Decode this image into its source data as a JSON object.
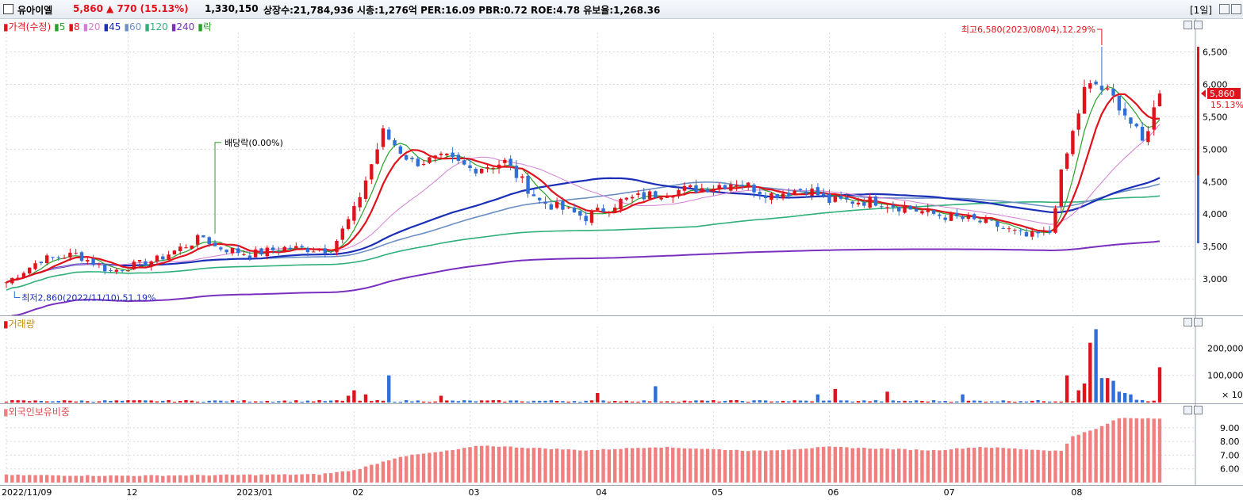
{
  "header": {
    "stock_name": "유아이엘",
    "price": "5,860",
    "change": "▲ 770 (15.13%)",
    "volume": "1,330,150",
    "info": "상장수:21,784,936 시총:1,276억 PER:16.09 PBR:0.72 ROE:4.78 유보율:1,268.36",
    "period": "[1일]"
  },
  "price_panel": {
    "legend": [
      {
        "label": "가격(수정)",
        "color": "#e0121b"
      },
      {
        "label": "5",
        "color": "#2ba02b"
      },
      {
        "label": "8",
        "color": "#e0121b"
      },
      {
        "label": "20",
        "color": "#d27ed2"
      },
      {
        "label": "45",
        "color": "#1a2fb8"
      },
      {
        "label": "60",
        "color": "#6c8fc4"
      },
      {
        "label": "120",
        "color": "#2fb07a"
      },
      {
        "label": "240",
        "color": "#7a2fbf"
      },
      {
        "label": "락",
        "color": "#2ba02b"
      }
    ],
    "high_note": "최고6,580(2023/08/04),12.29%",
    "low_note": "최저2,860(2022/11/10),51.19%",
    "dividend_note": "배당락(0.00%)",
    "current_price_tag": "5,860",
    "current_pct_tag": "15.13%"
  },
  "volume_panel": {
    "title": "거래량",
    "unit_tag": "× 10"
  },
  "foreign_panel": {
    "title": "외국인보유비중"
  },
  "colors": {
    "up": "#e0121b",
    "down": "#2f6fd6",
    "foreign_bar": "#f08080"
  },
  "chart_data": [
    {
      "type": "candlestick",
      "title": "가격(수정)",
      "ylim": [
        2500,
        6800
      ],
      "yticks": [
        "3,000",
        "3,500",
        "4,000",
        "4,500",
        "5,000",
        "5,500",
        "6,000",
        "6,500"
      ],
      "yticks_values": [
        3000,
        3500,
        4000,
        4500,
        5000,
        5500,
        6000,
        6500
      ],
      "xlabels": [
        "2022/11/09",
        "12",
        "2023/01",
        "02",
        "03",
        "04",
        "05",
        "06",
        "07",
        "08"
      ],
      "xlabel_index": [
        0,
        21,
        40,
        60,
        80,
        102,
        122,
        142,
        162,
        184
      ],
      "n": 200,
      "keypoints": [
        {
          "i": 0,
          "close": 2950
        },
        {
          "i": 6,
          "close": 3300
        },
        {
          "i": 12,
          "close": 3380
        },
        {
          "i": 18,
          "close": 3120
        },
        {
          "i": 26,
          "close": 3300
        },
        {
          "i": 34,
          "close": 3650
        },
        {
          "i": 36,
          "close": 3500
        },
        {
          "i": 42,
          "close": 3380
        },
        {
          "i": 48,
          "close": 3480
        },
        {
          "i": 56,
          "close": 3450
        },
        {
          "i": 60,
          "close": 4050
        },
        {
          "i": 65,
          "close": 5250
        },
        {
          "i": 70,
          "close": 4800
        },
        {
          "i": 76,
          "close": 4850
        },
        {
          "i": 80,
          "close": 4700
        },
        {
          "i": 86,
          "close": 4800
        },
        {
          "i": 92,
          "close": 4200
        },
        {
          "i": 100,
          "close": 3950
        },
        {
          "i": 106,
          "close": 4200
        },
        {
          "i": 114,
          "close": 4350
        },
        {
          "i": 120,
          "close": 4400
        },
        {
          "i": 126,
          "close": 4500
        },
        {
          "i": 132,
          "close": 4300
        },
        {
          "i": 138,
          "close": 4400
        },
        {
          "i": 142,
          "close": 4200
        },
        {
          "i": 150,
          "close": 4200
        },
        {
          "i": 160,
          "close": 4000
        },
        {
          "i": 170,
          "close": 3850
        },
        {
          "i": 176,
          "close": 3650
        },
        {
          "i": 180,
          "close": 3720
        },
        {
          "i": 182,
          "close": 4600
        },
        {
          "i": 186,
          "close": 5900
        },
        {
          "i": 188,
          "close": 6000
        },
        {
          "i": 192,
          "close": 5700
        },
        {
          "i": 196,
          "close": 5100
        },
        {
          "i": 199,
          "close": 5860
        }
      ],
      "high": 6580,
      "low": 2860
    },
    {
      "type": "bar",
      "title": "거래량",
      "ylim": [
        0,
        280000
      ],
      "yticks": [
        "100,000",
        "200,000"
      ],
      "yticks_values": [
        100000,
        200000
      ],
      "spikes": [
        {
          "i": 59,
          "v": 25000
        },
        {
          "i": 60,
          "v": 45000
        },
        {
          "i": 62,
          "v": 30000
        },
        {
          "i": 66,
          "v": 100000
        },
        {
          "i": 75,
          "v": 25000
        },
        {
          "i": 102,
          "v": 35000
        },
        {
          "i": 112,
          "v": 60000
        },
        {
          "i": 140,
          "v": 30000
        },
        {
          "i": 143,
          "v": 50000
        },
        {
          "i": 152,
          "v": 40000
        },
        {
          "i": 165,
          "v": 30000
        },
        {
          "i": 183,
          "v": 100000
        },
        {
          "i": 185,
          "v": 45000
        },
        {
          "i": 186,
          "v": 70000
        },
        {
          "i": 187,
          "v": 220000
        },
        {
          "i": 188,
          "v": 270000
        },
        {
          "i": 189,
          "v": 90000
        },
        {
          "i": 190,
          "v": 90000
        },
        {
          "i": 191,
          "v": 80000
        },
        {
          "i": 192,
          "v": 40000
        },
        {
          "i": 193,
          "v": 35000
        },
        {
          "i": 194,
          "v": 30000
        },
        {
          "i": 195,
          "v": 10000
        },
        {
          "i": 199,
          "v": 130000
        }
      ]
    },
    {
      "type": "bar",
      "title": "외국인보유비중",
      "ylim": [
        5.0,
        10.2
      ],
      "yticks": [
        "6.00",
        "7.00",
        "8.00",
        "9.00"
      ],
      "yticks_values": [
        6,
        7,
        8,
        9
      ],
      "keypoints": [
        {
          "i": 0,
          "v": 5.55
        },
        {
          "i": 20,
          "v": 5.5
        },
        {
          "i": 54,
          "v": 5.6
        },
        {
          "i": 60,
          "v": 5.9
        },
        {
          "i": 64,
          "v": 6.4
        },
        {
          "i": 68,
          "v": 6.9
        },
        {
          "i": 76,
          "v": 7.3
        },
        {
          "i": 82,
          "v": 7.7
        },
        {
          "i": 100,
          "v": 7.35
        },
        {
          "i": 112,
          "v": 7.6
        },
        {
          "i": 130,
          "v": 7.3
        },
        {
          "i": 142,
          "v": 7.6
        },
        {
          "i": 160,
          "v": 7.35
        },
        {
          "i": 168,
          "v": 7.6
        },
        {
          "i": 182,
          "v": 7.3
        },
        {
          "i": 184,
          "v": 8.4
        },
        {
          "i": 188,
          "v": 8.9
        },
        {
          "i": 192,
          "v": 9.7
        },
        {
          "i": 199,
          "v": 9.7
        }
      ]
    }
  ]
}
